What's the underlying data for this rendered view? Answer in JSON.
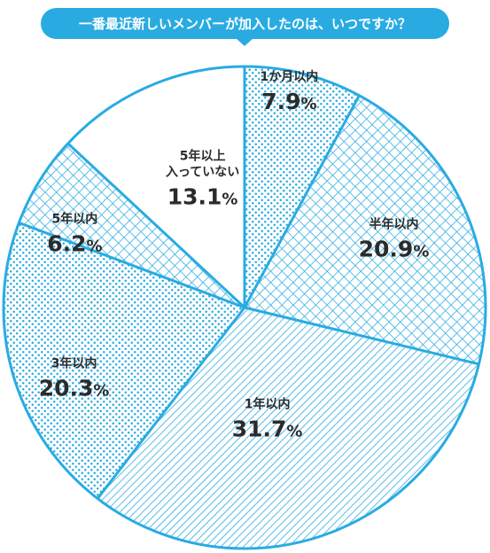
{
  "chart_data": {
    "type": "pie",
    "title": "一番最近新しいメンバーが加入したのは、いつですか？",
    "start_angle_deg": 0,
    "direction": "clockwise",
    "slices": [
      {
        "label": "1か月以内",
        "value": 7.9,
        "display": "7.9",
        "pattern": "dots"
      },
      {
        "label": "半年以内",
        "value": 20.9,
        "display": "20.9",
        "pattern": "crosshatch"
      },
      {
        "label": "1年以内",
        "value": 31.7,
        "display": "31.7",
        "pattern": "diagonal"
      },
      {
        "label": "3年以内",
        "value": 20.3,
        "display": "20.3",
        "pattern": "dots"
      },
      {
        "label": "5年以内",
        "value": 6.2,
        "display": "6.2",
        "pattern": "crosshatch"
      },
      {
        "label": "5年以上\n入っていない",
        "value": 13.1,
        "display": "13.1",
        "pattern": "none"
      }
    ],
    "unit": "%",
    "colors": {
      "accent": "#29abe2",
      "text": "#2b2b2b",
      "background": "#ffffff"
    }
  }
}
